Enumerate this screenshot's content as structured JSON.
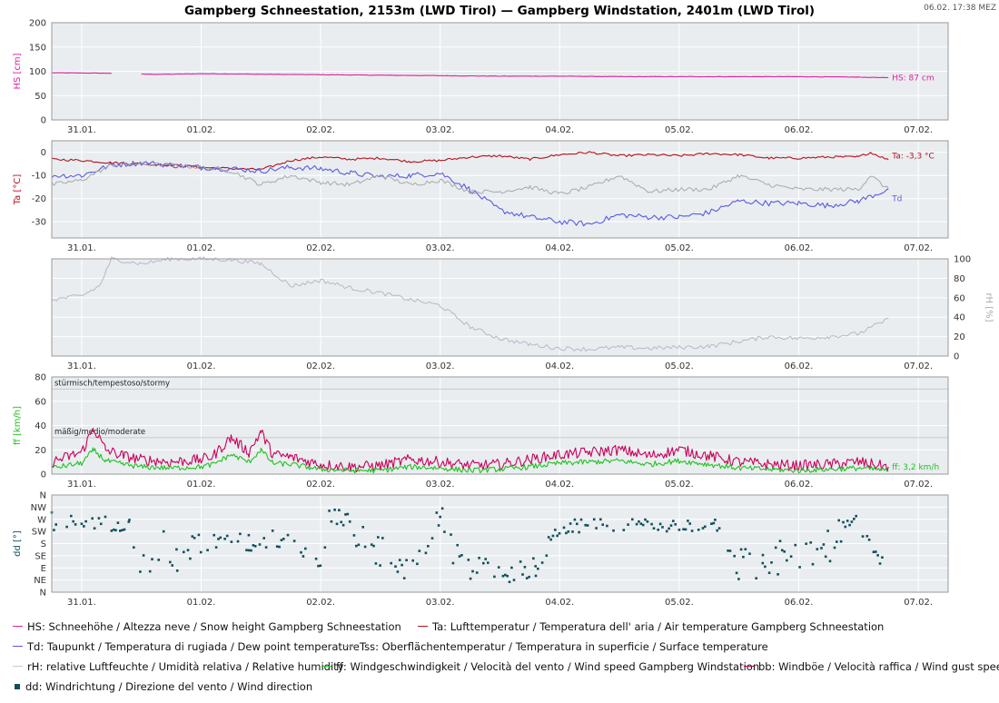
{
  "chart_data": {
    "type": "line",
    "title": "Gampberg Schneestation, 2153m (LWD Tirol) — Gampberg Windstation, 2401m (LWD Tirol)",
    "timestamp": "06.02. 17:38 MEZ",
    "x_tick_labels": [
      "31.01.",
      "01.02.",
      "02.02.",
      "03.02.",
      "04.02.",
      "05.02.",
      "06.02.",
      "07.02."
    ],
    "x_unit": "days since 31.01. 00:00",
    "x_range": [
      -0.25,
      7.25
    ],
    "panels": [
      {
        "id": "snow",
        "ylabel": "HS [cm]",
        "ylim": [
          0,
          200
        ],
        "yticks": [
          0,
          50,
          100,
          150,
          200
        ],
        "series": [
          {
            "key": "HS",
            "name": "HS: Schneehöhe / Altezza neve / Snow height  Gampberg Schneestation",
            "color": "#e0209a",
            "x": [
              -0.25,
              0.25,
              0.3,
              0.45,
              0.5,
              0.75,
              1.0,
              1.5,
              2.0,
              2.5,
              3.0,
              3.5,
              4.0,
              4.5,
              5.0,
              5.5,
              6.0,
              6.5,
              6.75
            ],
            "y": [
              97,
              96,
              null,
              null,
              94,
              94,
              95,
              94,
              93,
              92,
              91,
              90,
              90,
              89,
              89,
              89,
              89,
              88,
              87
            ]
          }
        ],
        "end_label": "HS: 87 cm"
      },
      {
        "id": "temperature",
        "ylabel": "Ta [°C]",
        "ylim": [
          -37,
          5
        ],
        "yticks": [
          -30,
          -20,
          -10,
          0
        ],
        "series": [
          {
            "key": "Ta",
            "name": "Ta: Lufttemperatur / Temperatura dell' aria / Air temperature  Gampberg Schneestation",
            "color": "#b5121b",
            "x": [
              -0.25,
              0.0,
              0.25,
              0.5,
              0.75,
              1.0,
              1.25,
              1.5,
              1.75,
              2.0,
              2.25,
              2.5,
              2.75,
              3.0,
              3.25,
              3.5,
              3.75,
              4.0,
              4.25,
              4.5,
              4.75,
              5.0,
              5.25,
              5.5,
              5.75,
              6.0,
              6.25,
              6.5,
              6.6,
              6.75
            ],
            "y": [
              -3,
              -3.5,
              -4.5,
              -5,
              -5.5,
              -6.5,
              -7,
              -7.5,
              -3.5,
              -2,
              -3,
              -2.5,
              -4,
              -3.5,
              -2,
              -1.5,
              -3,
              -1,
              0,
              -1.5,
              -1,
              -1.5,
              -0.5,
              -1,
              -2.5,
              -2.5,
              -2,
              -2,
              0,
              -3.3
            ]
          },
          {
            "key": "Td",
            "name": "Td: Taupunkt / Temperatura di rugiada / Dew point temperature",
            "color": "#5a5ae0",
            "x": [
              -0.25,
              0.0,
              0.25,
              0.5,
              0.75,
              1.0,
              1.25,
              1.5,
              1.75,
              2.0,
              2.25,
              2.5,
              2.75,
              3.0,
              3.25,
              3.5,
              3.75,
              4.0,
              4.25,
              4.5,
              4.75,
              5.0,
              5.25,
              5.5,
              5.75,
              6.0,
              6.25,
              6.5,
              6.75
            ],
            "y": [
              -10,
              -10,
              -5.5,
              -4.5,
              -5.5,
              -6.5,
              -7,
              -8,
              -6.5,
              -7,
              -9,
              -10.5,
              -10,
              -9,
              -16,
              -25,
              -28,
              -30,
              -31,
              -27,
              -28,
              -28,
              -26,
              -21,
              -22,
              -22,
              -23,
              -21,
              -16
            ]
          },
          {
            "key": "Tss",
            "name": "Tss: Oberflächentemperatur / Temperatura in superficie / Surface temperature",
            "color": "#a8a8a8",
            "x": [
              -0.25,
              0.0,
              0.25,
              0.5,
              0.75,
              1.0,
              1.25,
              1.5,
              1.75,
              2.0,
              2.25,
              2.5,
              2.75,
              3.0,
              3.25,
              3.5,
              3.75,
              4.0,
              4.25,
              4.5,
              4.75,
              5.0,
              5.25,
              5.5,
              5.75,
              6.0,
              6.25,
              6.5,
              6.6,
              6.75
            ],
            "y": [
              -14,
              -12,
              -5.5,
              -5,
              -5.5,
              -6.5,
              -8,
              -14,
              -10,
              -13,
              -14,
              -10,
              -14,
              -12,
              -17,
              -17,
              -15,
              -18,
              -15,
              -10,
              -17,
              -16,
              -16,
              -10,
              -14,
              -16,
              -16,
              -16,
              -10,
              -16
            ]
          }
        ],
        "end_labels": [
          "Ta: -3,3 °C",
          "Td"
        ]
      },
      {
        "id": "humidity",
        "ylabel": "rH [%]",
        "ylim": [
          0,
          100
        ],
        "yticks": [
          0,
          20,
          40,
          60,
          80,
          100
        ],
        "series": [
          {
            "key": "rH",
            "name": "rH: relative Luftfeuchte / Umidità relativa / Relative humidity",
            "color": "#b8b8c4",
            "x": [
              -0.25,
              0.0,
              0.15,
              0.25,
              0.5,
              0.75,
              1.0,
              1.25,
              1.5,
              1.75,
              2.0,
              2.25,
              2.5,
              2.75,
              3.0,
              3.25,
              3.5,
              3.75,
              4.0,
              4.25,
              4.5,
              4.75,
              5.0,
              5.25,
              5.5,
              5.75,
              6.0,
              6.25,
              6.5,
              6.75
            ],
            "y": [
              58,
              62,
              72,
              100,
              95,
              100,
              100,
              99,
              95,
              72,
              78,
              70,
              65,
              58,
              52,
              30,
              18,
              12,
              8,
              7,
              9,
              8,
              9,
              10,
              15,
              20,
              18,
              20,
              23,
              38
            ]
          }
        ]
      },
      {
        "id": "wind",
        "ylabel": "ff [km/h]",
        "ylim": [
          0,
          80
        ],
        "yticks": [
          0,
          20,
          40,
          60,
          80
        ],
        "threshold_labels": [
          {
            "value": 75,
            "text": "stürmisch/tempestoso/stormy"
          },
          {
            "value": 35,
            "text": "mäßig/medio/moderate"
          }
        ],
        "series": [
          {
            "key": "bb",
            "name": "bb: Windböe / Velocità raffica / Wind gust speed",
            "color": "#c8005a",
            "x": [
              -0.25,
              0.0,
              0.1,
              0.2,
              0.35,
              0.5,
              0.75,
              1.0,
              1.1,
              1.25,
              1.4,
              1.5,
              1.6,
              1.75,
              2.0,
              2.25,
              2.5,
              2.75,
              3.0,
              3.25,
              3.5,
              3.75,
              4.0,
              4.25,
              4.5,
              4.75,
              5.0,
              5.25,
              5.5,
              5.75,
              6.0,
              6.25,
              6.5,
              6.75
            ],
            "y": [
              10,
              18,
              38,
              20,
              15,
              12,
              10,
              12,
              15,
              30,
              18,
              35,
              16,
              14,
              8,
              6,
              7,
              12,
              10,
              7,
              8,
              12,
              16,
              18,
              20,
              15,
              20,
              15,
              10,
              8,
              7,
              8,
              10,
              6
            ]
          },
          {
            "key": "ff",
            "name": "ff: Windgeschwindigkeit / Velocità del vento / Wind speed  Gampberg Windstation",
            "color": "#1fc21f",
            "x": [
              -0.25,
              0.0,
              0.1,
              0.2,
              0.35,
              0.5,
              0.75,
              1.0,
              1.1,
              1.25,
              1.4,
              1.5,
              1.6,
              1.75,
              2.0,
              2.25,
              2.5,
              2.75,
              3.0,
              3.25,
              3.5,
              3.75,
              4.0,
              4.25,
              4.5,
              4.75,
              5.0,
              5.25,
              5.5,
              5.75,
              6.0,
              6.25,
              6.5,
              6.75
            ],
            "y": [
              5,
              9,
              20,
              11,
              8,
              6,
              5,
              6,
              8,
              16,
              10,
              20,
              9,
              8,
              4,
              3,
              3,
              6,
              5,
              3,
              4,
              6,
              9,
              10,
              11,
              8,
              11,
              8,
              5,
              4,
              3,
              4,
              5,
              3
            ]
          }
        ],
        "end_label": "ff: 3,2 km/h"
      },
      {
        "id": "direction",
        "ylabel": "dd [°]",
        "ylim": [
          0,
          360
        ],
        "ytick_labels": [
          "N",
          "NE",
          "E",
          "SE",
          "S",
          "SW",
          "W",
          "NW",
          "N"
        ],
        "yticks": [
          0,
          45,
          90,
          135,
          180,
          225,
          270,
          315,
          360
        ],
        "series": [
          {
            "key": "dd",
            "name": "dd: Windrichtung / Direzione del vento / Wind direction",
            "color": "#0f4f5c",
            "marker": "square",
            "x": [
              -0.25,
              0.0,
              0.25,
              0.4,
              0.5,
              0.65,
              0.8,
              1.0,
              1.2,
              1.4,
              1.6,
              1.8,
              2.0,
              2.1,
              2.3,
              2.5,
              2.7,
              3.0,
              3.2,
              3.4,
              3.6,
              3.8,
              4.0,
              4.5,
              5.0,
              5.3,
              5.5,
              5.7,
              5.9,
              6.1,
              6.3,
              6.5,
              6.7
            ],
            "y": [
              265,
              250,
              255,
              270,
              110,
              170,
              120,
              190,
              185,
              180,
              200,
              185,
              100,
              310,
              210,
              140,
              80,
              250,
              110,
              80,
              75,
              90,
              240,
              250,
              245,
              250,
              100,
              120,
              130,
              140,
              200,
              270,
              110
            ],
            "spread": [
              35,
              30,
              30,
              40,
              70,
              70,
              60,
              50,
              30,
              40,
              40,
              30,
              40,
              60,
              80,
              70,
              30,
              80,
              70,
              40,
              40,
              40,
              30,
              20,
              25,
              20,
              70,
              70,
              60,
              70,
              80,
              40,
              20
            ]
          }
        ]
      }
    ],
    "legend": [
      {
        "key": "HS",
        "text": "HS: Schneehöhe / Altezza neve / Snow height  Gampberg Schneestation",
        "color": "#e0209a",
        "marker": "line"
      },
      {
        "key": "Ta",
        "text": "Ta: Lufttemperatur / Temperatura dell' aria / Air temperature  Gampberg Schneestation",
        "color": "#b5121b",
        "marker": "line"
      },
      {
        "key": "Td",
        "text": "Td: Taupunkt / Temperatura di rugiada / Dew point temperature",
        "color": "#5a5ae0",
        "marker": "line"
      },
      {
        "key": "Tss",
        "text": "Tss: Oberflächentemperatur / Temperatura in superficie / Surface temperature",
        "color": "#a8a8a8",
        "marker": "line"
      },
      {
        "key": "rH",
        "text": "rH: relative Luftfeuchte / Umidità relativa / Relative humidity",
        "color": "#c8c8d0",
        "marker": "line"
      },
      {
        "key": "ff",
        "text": "ff: Windgeschwindigkeit / Velocità del vento / Wind speed  Gampberg Windstation",
        "color": "#1fc21f",
        "marker": "line"
      },
      {
        "key": "bb",
        "text": "bb: Windböe / Velocità raffica / Wind gust speed",
        "color": "#c8005a",
        "marker": "line"
      },
      {
        "key": "dd",
        "text": "dd: Windrichtung / Direzione del vento / Wind direction",
        "color": "#0f4f5c",
        "marker": "square"
      }
    ],
    "colors": {
      "plot_background": "#e9edf0",
      "grid": "#ffffff",
      "frame": "#9a9a9a"
    }
  }
}
